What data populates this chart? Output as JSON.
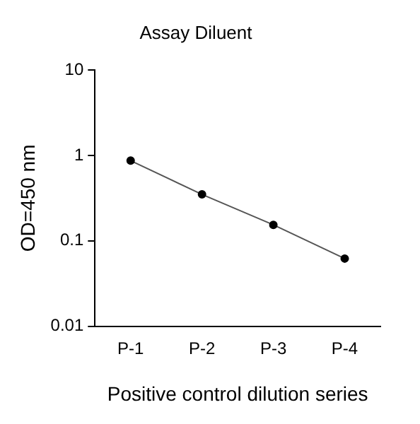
{
  "chart_data": {
    "type": "line",
    "title": "Assay Diluent",
    "xlabel": "Positive control dilution series",
    "ylabel": "OD=450 nm",
    "categories": [
      "P-1",
      "P-2",
      "P-3",
      "P-4"
    ],
    "series": [
      {
        "color": "#000000",
        "values": [
          0.87,
          0.35,
          0.154,
          0.062
        ]
      }
    ],
    "ylim": [
      0.01,
      10
    ],
    "yticks": [
      0.01,
      0.1,
      1,
      10
    ],
    "log": "y",
    "grid": false,
    "legend": false,
    "marker": "circle",
    "line_style": "solid"
  }
}
